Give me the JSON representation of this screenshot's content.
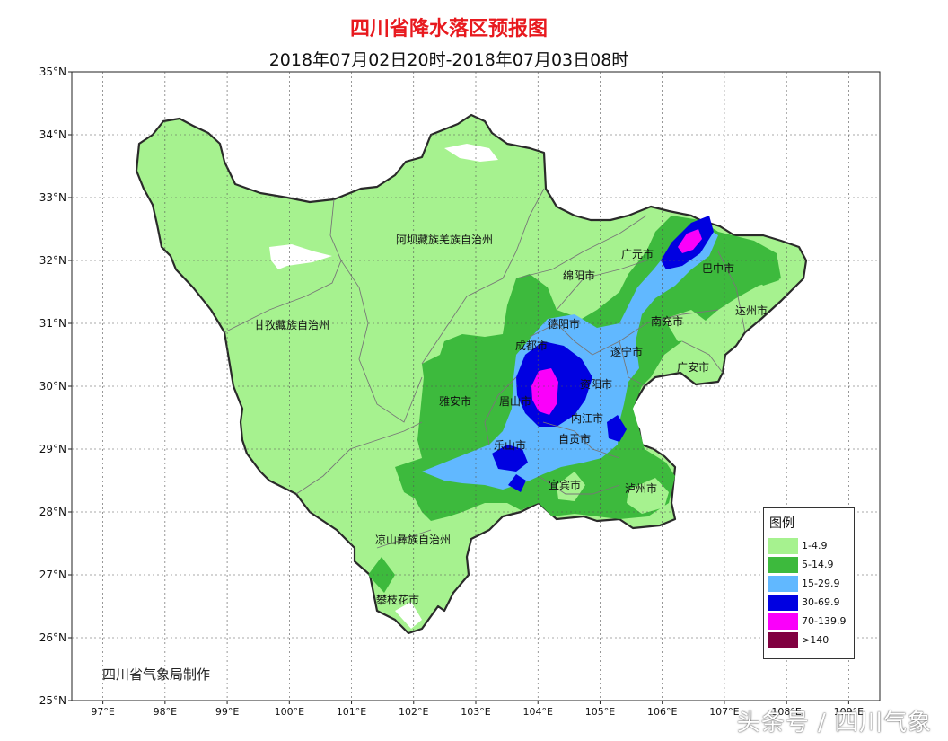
{
  "title": "四川省降水落区预报图",
  "subtitle": "2018年07月02日20时-2018年07月03日08时",
  "credit": "四川省气象局制作",
  "watermark": "头条号 / 四川气象",
  "axes": {
    "lat_labels": [
      "35°N",
      "34°N",
      "33°N",
      "32°N",
      "31°N",
      "30°N",
      "29°N",
      "28°N",
      "27°N",
      "26°N",
      "25°N"
    ],
    "lon_labels": [
      "97°E",
      "98°E",
      "99°E",
      "100°E",
      "101°E",
      "102°E",
      "103°E",
      "104°E",
      "105°E",
      "106°E",
      "107°E",
      "108°E",
      "109°E"
    ]
  },
  "regions": [
    {
      "id": "aba",
      "name": "阿坝藏族羌族自治州"
    },
    {
      "id": "ganzi",
      "name": "甘孜藏族自治州"
    },
    {
      "id": "liangshan",
      "name": "凉山彝族自治州"
    },
    {
      "id": "panzhihua",
      "name": "攀枝花市"
    },
    {
      "id": "guangyuan",
      "name": "广元市"
    },
    {
      "id": "bazhong",
      "name": "巴中市"
    },
    {
      "id": "mianyang",
      "name": "绵阳市"
    },
    {
      "id": "dazhou",
      "name": "达州市"
    },
    {
      "id": "deyang",
      "name": "德阳市"
    },
    {
      "id": "nanchong",
      "name": "南充市"
    },
    {
      "id": "chengdu",
      "name": "成都市"
    },
    {
      "id": "suining",
      "name": "遂宁市"
    },
    {
      "id": "guangan",
      "name": "广安市"
    },
    {
      "id": "yaan",
      "name": "雅安市"
    },
    {
      "id": "meishan",
      "name": "眉山市"
    },
    {
      "id": "ziyang",
      "name": "资阳市"
    },
    {
      "id": "neijiang",
      "name": "内江市"
    },
    {
      "id": "leshan",
      "name": "乐山市"
    },
    {
      "id": "zigong",
      "name": "自贡市"
    },
    {
      "id": "yibin",
      "name": "宜宾市"
    },
    {
      "id": "luzhou",
      "name": "泸州市"
    }
  ],
  "legend": {
    "title": "图例",
    "items": [
      {
        "label": "1-4.9",
        "color": "#a6f28f"
      },
      {
        "label": "5-14.9",
        "color": "#3dba3d"
      },
      {
        "label": "15-29.9",
        "color": "#61b8ff"
      },
      {
        "label": "30-69.9",
        "color": "#0000e1"
      },
      {
        "label": "70-139.9",
        "color": "#fa00fa"
      },
      {
        "label": ">140",
        "color": "#800040"
      }
    ]
  },
  "colors": {
    "pale_green": "#a6f28f",
    "green": "#3dba3d",
    "blue": "#61b8ff",
    "dark_blue": "#0000e1",
    "magenta": "#fa00fa",
    "title": "#e8191e"
  }
}
